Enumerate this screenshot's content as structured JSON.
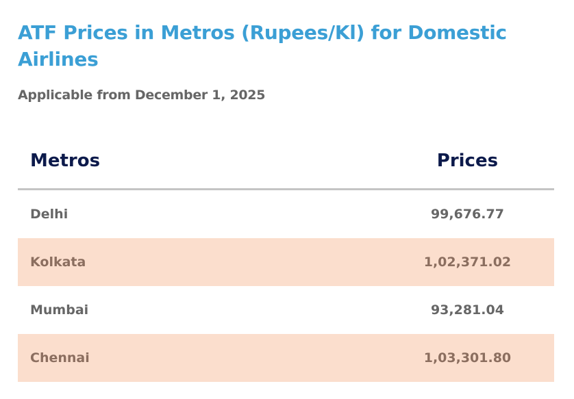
{
  "title": "ATF Prices in Metros (Rupees/Kl) for Domestic Airlines",
  "subtitle": "Applicable from December 1, 2025",
  "table": {
    "headers": [
      "Metros",
      "Prices"
    ],
    "rows": [
      {
        "metro": "Delhi",
        "price": "99,676.77"
      },
      {
        "metro": "Kolkata",
        "price": "1,02,371.02"
      },
      {
        "metro": "Mumbai",
        "price": "93,281.04"
      },
      {
        "metro": "Chennai",
        "price": "1,03,301.80"
      }
    ]
  },
  "colors": {
    "title": "#3b9fd5",
    "header": "#0c1a4b",
    "alt_row": "#fbdecd"
  }
}
